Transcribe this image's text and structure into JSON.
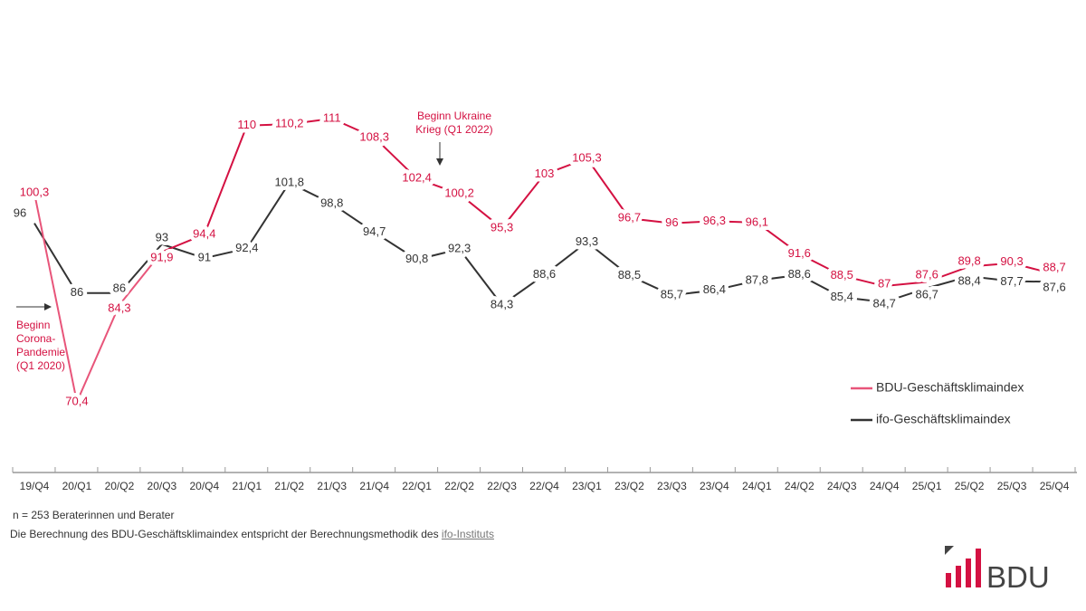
{
  "chart_data": {
    "type": "line",
    "categories": [
      "19/Q4",
      "20/Q1",
      "20/Q2",
      "20/Q3",
      "20/Q4",
      "21/Q1",
      "21/Q2",
      "21/Q3",
      "21/Q4",
      "22/Q1",
      "22/Q2",
      "22/Q3",
      "22/Q4",
      "23/Q1",
      "23/Q2",
      "23/Q3",
      "23/Q4",
      "24/Q1",
      "24/Q2",
      "24/Q3",
      "24/Q4",
      "25/Q1",
      "25/Q2",
      "25/Q3",
      "25/Q4"
    ],
    "series": [
      {
        "name": "BDU-Geschäftsklimaindex",
        "color": "#d41142",
        "color_early": "#e8557a",
        "values": [
          100.3,
          70.4,
          84.3,
          91.9,
          94.4,
          110,
          110.2,
          111,
          108.3,
          102.4,
          100.2,
          95.3,
          103,
          105.3,
          96.7,
          96,
          96.3,
          96.1,
          91.6,
          88.5,
          87,
          87.6,
          89.8,
          90.3,
          88.7
        ]
      },
      {
        "name": "ifo-Geschäftsklimaindex",
        "color": "#333333",
        "values": [
          96,
          86,
          86,
          93,
          91,
          92.4,
          101.8,
          98.8,
          94.7,
          90.8,
          92.3,
          84.3,
          88.6,
          93.3,
          88.5,
          85.7,
          86.4,
          87.8,
          88.6,
          85.4,
          84.7,
          86.7,
          88.4,
          87.7,
          87.6
        ]
      }
    ],
    "data_labels": true,
    "decimal_separator": ",",
    "grid": false,
    "legend_position": "right",
    "annotations": [
      {
        "text": "Beginn Corona-Pandemie (Q1 2020)",
        "lines": [
          "Beginn",
          "Corona-",
          "Pandemie",
          "(Q1 2020)"
        ],
        "category": "20/Q1"
      },
      {
        "text": "Beginn Ukraine Krieg (Q1 2022)",
        "lines": [
          "Beginn Ukraine",
          "Krieg (Q1 2022)"
        ],
        "category": "22/Q2"
      }
    ]
  },
  "footer": {
    "sample": "n = 253 Beraterinnen und Berater",
    "method_text": "Die Berechnung des BDU-Geschäftsklimaindex entspricht der Berechnungsmethodik des",
    "method_link": "ifo-Instituts"
  },
  "logo": {
    "text": "BDU",
    "colors": {
      "bars": "#d41142",
      "text": "#444444"
    }
  }
}
